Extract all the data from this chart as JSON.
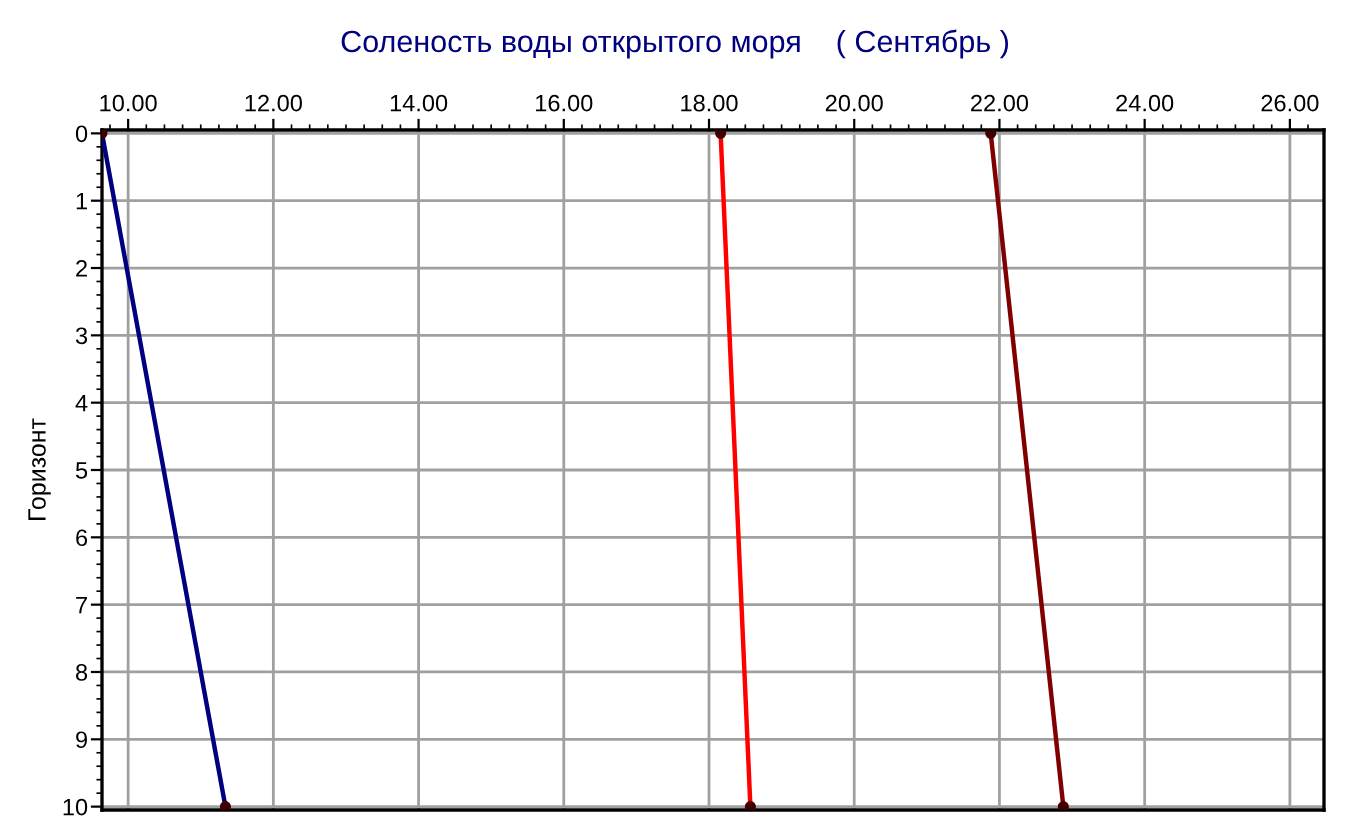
{
  "chart_data": {
    "type": "line",
    "title": "Соленость воды открытого моря    ( Сентябрь )",
    "ylabel": "Горизонт",
    "series": [
      {
        "color": "#000080",
        "x": [
          9.64,
          11.34
        ],
        "values": [
          0,
          10
        ]
      },
      {
        "color": "#ff0000",
        "x": [
          18.16,
          18.57
        ],
        "values": [
          0,
          10
        ]
      },
      {
        "color": "#800000",
        "x": [
          21.88,
          22.88
        ],
        "values": [
          0,
          10
        ]
      }
    ],
    "xlim": [
      9.64,
      26.47
    ],
    "xticks": [
      {
        "value": 10,
        "label": "10.00"
      },
      {
        "value": 12,
        "label": "12.00"
      },
      {
        "value": 14,
        "label": "14.00"
      },
      {
        "value": 16,
        "label": "16.00"
      },
      {
        "value": 18,
        "label": "18.00"
      },
      {
        "value": 20,
        "label": "20.00"
      },
      {
        "value": 22,
        "label": "22.00"
      },
      {
        "value": 24,
        "label": "24.00"
      },
      {
        "value": 26,
        "label": "26.00"
      }
    ],
    "ylim": [
      10.05,
      -0.05
    ],
    "yticks": [
      0,
      1,
      2,
      3,
      4,
      5,
      6,
      7,
      8,
      9,
      10
    ],
    "grid": true,
    "legend": false,
    "marker": "circle",
    "line_style": "solid"
  }
}
